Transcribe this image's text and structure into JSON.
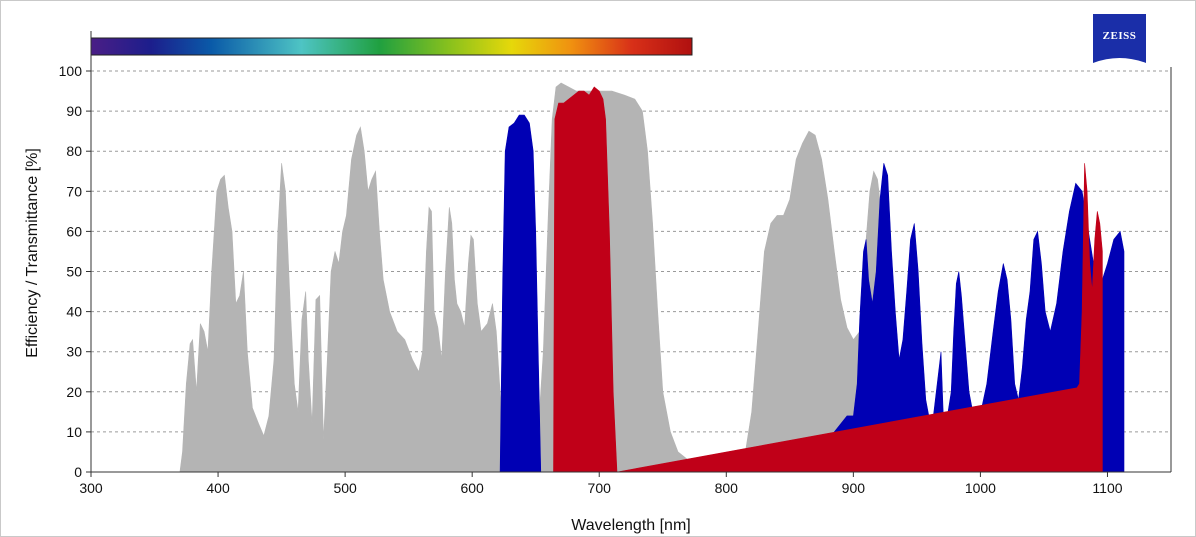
{
  "logo": {
    "text": "ZEISS",
    "color": "#1a2ea8"
  },
  "chart_data": {
    "type": "area",
    "xlabel": "Wavelength [nm]",
    "ylabel": "Efficiency / Transmittance [%]",
    "xlim": [
      300,
      1150
    ],
    "ylim": [
      0,
      100
    ],
    "x_ticks": [
      300,
      400,
      500,
      600,
      700,
      800,
      900,
      1000,
      1100
    ],
    "y_ticks": [
      0,
      10,
      20,
      30,
      40,
      50,
      60,
      70,
      80,
      90,
      100
    ],
    "grid": "horizontal dotted",
    "spectrum_bar": {
      "range": [
        300,
        773
      ]
    },
    "series": [
      {
        "color": "#b4b4b4",
        "points": [
          [
            350,
            0
          ],
          [
            370,
            0
          ],
          [
            372,
            5
          ],
          [
            375,
            22
          ],
          [
            378,
            32
          ],
          [
            380,
            33
          ],
          [
            383,
            20
          ],
          [
            386,
            37
          ],
          [
            389,
            35
          ],
          [
            392,
            30
          ],
          [
            395,
            50
          ],
          [
            399,
            70
          ],
          [
            402,
            73
          ],
          [
            405,
            74
          ],
          [
            408,
            66
          ],
          [
            411,
            60
          ],
          [
            414,
            42
          ],
          [
            417,
            44
          ],
          [
            420,
            50
          ],
          [
            423,
            30
          ],
          [
            427,
            16
          ],
          [
            432,
            12
          ],
          [
            436,
            9
          ],
          [
            440,
            14
          ],
          [
            444,
            28
          ],
          [
            447,
            60
          ],
          [
            450,
            77
          ],
          [
            453,
            70
          ],
          [
            457,
            40
          ],
          [
            460,
            22
          ],
          [
            463,
            15
          ],
          [
            466,
            38
          ],
          [
            469,
            45
          ],
          [
            471,
            28
          ],
          [
            474,
            12
          ],
          [
            477,
            43
          ],
          [
            480,
            44
          ],
          [
            483,
            8
          ],
          [
            486,
            28
          ],
          [
            489,
            50
          ],
          [
            492,
            55
          ],
          [
            495,
            52
          ],
          [
            498,
            60
          ],
          [
            501,
            64
          ],
          [
            505,
            78
          ],
          [
            509,
            84
          ],
          [
            512,
            86
          ],
          [
            515,
            80
          ],
          [
            518,
            70
          ],
          [
            521,
            73
          ],
          [
            524,
            75
          ],
          [
            527,
            60
          ],
          [
            530,
            48
          ],
          [
            535,
            40
          ],
          [
            541,
            35
          ],
          [
            547,
            33
          ],
          [
            553,
            28
          ],
          [
            558,
            25
          ],
          [
            561,
            30
          ],
          [
            564,
            55
          ],
          [
            566,
            66
          ],
          [
            568,
            65
          ],
          [
            570,
            40
          ],
          [
            573,
            36
          ],
          [
            576,
            28
          ],
          [
            579,
            50
          ],
          [
            582,
            66
          ],
          [
            584,
            62
          ],
          [
            586,
            48
          ],
          [
            588,
            42
          ],
          [
            591,
            40
          ],
          [
            594,
            36
          ],
          [
            597,
            52
          ],
          [
            599,
            59
          ],
          [
            601,
            58
          ],
          [
            604,
            42
          ],
          [
            607,
            35
          ],
          [
            612,
            37
          ],
          [
            616,
            42
          ],
          [
            619,
            35
          ],
          [
            622,
            20
          ],
          [
            625,
            10
          ],
          [
            628,
            5
          ],
          [
            640,
            4
          ],
          [
            648,
            5
          ],
          [
            652,
            10
          ],
          [
            656,
            30
          ],
          [
            660,
            65
          ],
          [
            663,
            88
          ],
          [
            666,
            96
          ],
          [
            670,
            97
          ],
          [
            676,
            96
          ],
          [
            682,
            95
          ],
          [
            690,
            95
          ],
          [
            700,
            95
          ],
          [
            710,
            95
          ],
          [
            720,
            94
          ],
          [
            728,
            93
          ],
          [
            734,
            90
          ],
          [
            738,
            80
          ],
          [
            742,
            62
          ],
          [
            746,
            40
          ],
          [
            750,
            20
          ],
          [
            756,
            10
          ],
          [
            762,
            5
          ],
          [
            770,
            3
          ],
          [
            780,
            2
          ],
          [
            790,
            1
          ],
          [
            800,
            1
          ],
          [
            810,
            2
          ],
          [
            815,
            5
          ],
          [
            820,
            15
          ],
          [
            825,
            35
          ],
          [
            830,
            55
          ],
          [
            835,
            62
          ],
          [
            840,
            64
          ],
          [
            845,
            64
          ],
          [
            850,
            68
          ],
          [
            855,
            78
          ],
          [
            860,
            82
          ],
          [
            865,
            85
          ],
          [
            870,
            84
          ],
          [
            875,
            78
          ],
          [
            880,
            68
          ],
          [
            885,
            55
          ],
          [
            890,
            43
          ],
          [
            895,
            36
          ],
          [
            900,
            33
          ],
          [
            905,
            35
          ],
          [
            908,
            45
          ],
          [
            910,
            58
          ],
          [
            913,
            70
          ],
          [
            916,
            75
          ],
          [
            919,
            73
          ],
          [
            922,
            65
          ],
          [
            925,
            50
          ],
          [
            928,
            35
          ]
        ]
      },
      {
        "color": "#0000b4",
        "points": [
          [
            622,
            0
          ],
          [
            624,
            48
          ],
          [
            626,
            80
          ],
          [
            629,
            86
          ],
          [
            633,
            87
          ],
          [
            637,
            89
          ],
          [
            641,
            89
          ],
          [
            645,
            87
          ],
          [
            648,
            80
          ],
          [
            650,
            60
          ],
          [
            652,
            30
          ],
          [
            654,
            0
          ],
          [
            820,
            0
          ],
          [
            840,
            1
          ],
          [
            860,
            3
          ],
          [
            880,
            8
          ],
          [
            895,
            14
          ],
          [
            900,
            14
          ],
          [
            903,
            22
          ],
          [
            905,
            38
          ],
          [
            908,
            55
          ],
          [
            910,
            58
          ],
          [
            912,
            48
          ],
          [
            915,
            42
          ],
          [
            918,
            50
          ],
          [
            921,
            68
          ],
          [
            924,
            77
          ],
          [
            927,
            74
          ],
          [
            930,
            55
          ],
          [
            933,
            40
          ],
          [
            936,
            28
          ],
          [
            939,
            33
          ],
          [
            942,
            45
          ],
          [
            945,
            58
          ],
          [
            948,
            62
          ],
          [
            951,
            50
          ],
          [
            954,
            32
          ],
          [
            957,
            18
          ],
          [
            960,
            13
          ],
          [
            963,
            14
          ],
          [
            966,
            22
          ],
          [
            969,
            30
          ],
          [
            971,
            12
          ],
          [
            974,
            14
          ],
          [
            977,
            20
          ],
          [
            979,
            35
          ],
          [
            981,
            47
          ],
          [
            983,
            50
          ],
          [
            985,
            44
          ],
          [
            988,
            32
          ],
          [
            991,
            20
          ],
          [
            994,
            15
          ],
          [
            997,
            13
          ],
          [
            1001,
            16
          ],
          [
            1005,
            22
          ],
          [
            1010,
            35
          ],
          [
            1014,
            45
          ],
          [
            1018,
            52
          ],
          [
            1021,
            48
          ],
          [
            1024,
            38
          ],
          [
            1027,
            22
          ],
          [
            1030,
            18
          ],
          [
            1033,
            26
          ],
          [
            1036,
            38
          ],
          [
            1039,
            45
          ],
          [
            1042,
            58
          ],
          [
            1045,
            60
          ],
          [
            1048,
            52
          ],
          [
            1051,
            40
          ],
          [
            1055,
            35
          ],
          [
            1060,
            42
          ],
          [
            1065,
            55
          ],
          [
            1070,
            65
          ],
          [
            1075,
            72
          ],
          [
            1080,
            70
          ],
          [
            1085,
            60
          ],
          [
            1090,
            50
          ],
          [
            1093,
            48
          ],
          [
            1096,
            48
          ],
          [
            1100,
            52
          ],
          [
            1105,
            58
          ],
          [
            1110,
            60
          ],
          [
            1113,
            55
          ]
        ]
      },
      {
        "color": "#c00018",
        "points": [
          [
            664,
            0
          ],
          [
            665,
            88
          ],
          [
            668,
            92
          ],
          [
            672,
            92
          ],
          [
            676,
            93
          ],
          [
            680,
            94
          ],
          [
            684,
            95
          ],
          [
            688,
            95
          ],
          [
            692,
            94
          ],
          [
            696,
            96
          ],
          [
            700,
            95
          ],
          [
            703,
            93
          ],
          [
            705,
            88
          ],
          [
            708,
            60
          ],
          [
            711,
            20
          ],
          [
            714,
            0
          ],
          [
            1076,
            21
          ],
          [
            1078,
            22
          ],
          [
            1080,
            40
          ],
          [
            1082,
            77
          ],
          [
            1084,
            70
          ],
          [
            1086,
            52
          ],
          [
            1088,
            45
          ],
          [
            1090,
            58
          ],
          [
            1092,
            65
          ],
          [
            1094,
            62
          ],
          [
            1096,
            55
          ]
        ]
      }
    ]
  }
}
